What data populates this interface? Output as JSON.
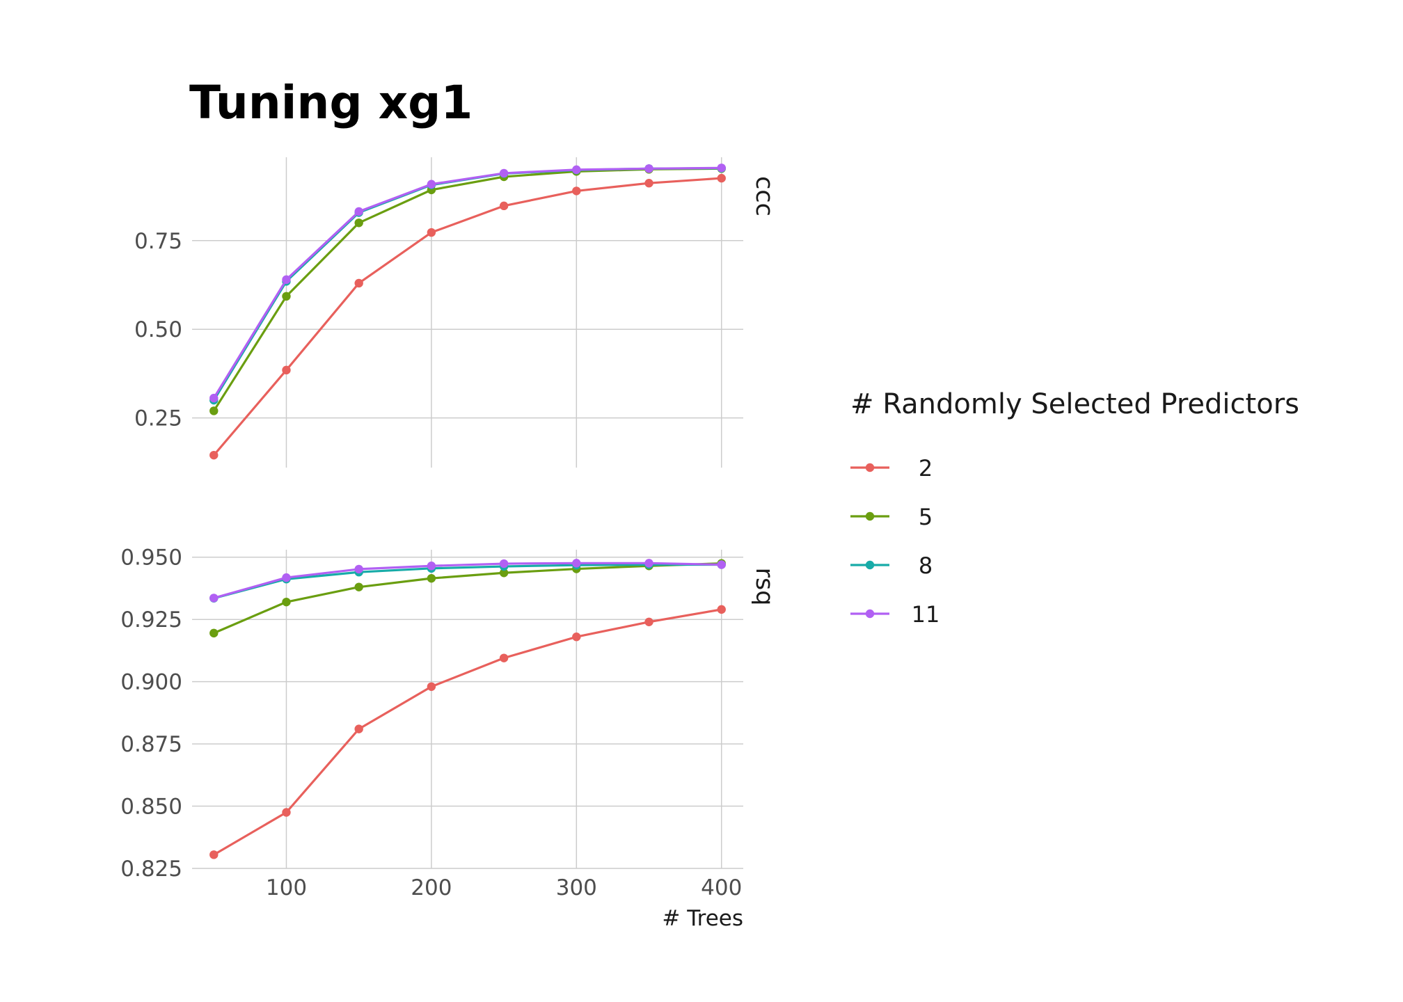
{
  "chart_data": {
    "type": "line",
    "title": "Tuning xg1",
    "xlabel": "# Trees",
    "x": [
      50,
      100,
      150,
      200,
      250,
      300,
      350,
      400
    ],
    "x_ticks": [
      "100",
      "200",
      "300",
      "400"
    ],
    "legend": {
      "title": "# Randomly Selected Predictors",
      "position": "right",
      "entries": [
        "2",
        "5",
        "8",
        "11"
      ]
    },
    "colors": {
      "2": "#e8605c",
      "5": "#6a9e10",
      "8": "#17aba8",
      "11": "#b160f3"
    },
    "grid": true,
    "panels": [
      {
        "name": "ccc",
        "strip_label": "ccc",
        "ylim": [
          0.11,
          0.985
        ],
        "y_ticks": [
          "0.25",
          "0.50",
          "0.75"
        ],
        "series": [
          {
            "name": "2",
            "values": [
              0.145,
              0.385,
              0.63,
              0.773,
              0.848,
              0.89,
              0.912,
              0.926
            ]
          },
          {
            "name": "5",
            "values": [
              0.27,
              0.593,
              0.8,
              0.893,
              0.93,
              0.945,
              0.951,
              0.953
            ]
          },
          {
            "name": "8",
            "values": [
              0.3,
              0.635,
              0.829,
              0.907,
              0.939,
              0.949,
              0.953,
              0.954
            ]
          },
          {
            "name": "11",
            "values": [
              0.306,
              0.64,
              0.832,
              0.909,
              0.94,
              0.95,
              0.953,
              0.955
            ]
          }
        ]
      },
      {
        "name": "rsq",
        "strip_label": "rsq",
        "ylim": [
          0.825,
          0.953
        ],
        "y_ticks": [
          "0.825",
          "0.850",
          "0.875",
          "0.900",
          "0.925",
          "0.950"
        ],
        "series": [
          {
            "name": "2",
            "values": [
              0.8305,
              0.8475,
              0.881,
              0.898,
              0.9095,
              0.918,
              0.924,
              0.929
            ]
          },
          {
            "name": "5",
            "values": [
              0.9195,
              0.932,
              0.938,
              0.9415,
              0.9437,
              0.9453,
              0.9465,
              0.9475
            ]
          },
          {
            "name": "8",
            "values": [
              0.9335,
              0.9412,
              0.944,
              0.9455,
              0.9463,
              0.9468,
              0.947,
              0.947
            ]
          },
          {
            "name": "11",
            "values": [
              0.9336,
              0.9418,
              0.9452,
              0.9465,
              0.9474,
              0.9476,
              0.9476,
              0.947
            ]
          }
        ]
      }
    ]
  }
}
